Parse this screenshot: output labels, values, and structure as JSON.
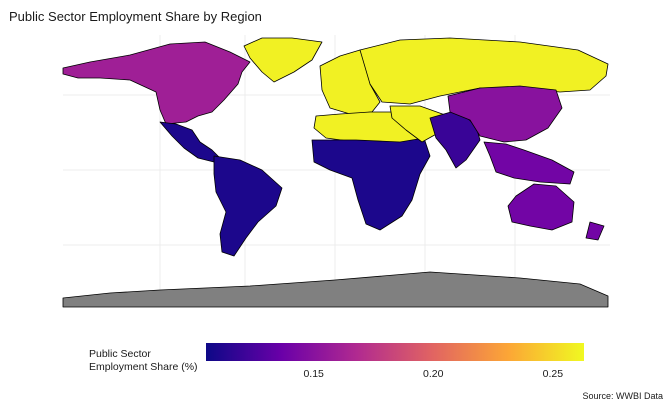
{
  "title": "Public Sector Employment Share by Region",
  "legend": {
    "title_line1": "Public Sector",
    "title_line2": "Employment Share (%)",
    "ticks": [
      "0.15",
      "0.20",
      "0.25"
    ],
    "scale_min": 0.105,
    "scale_max": 0.263,
    "palette": "plasma",
    "colors": [
      "#0d0887",
      "#6a00a8",
      "#b12a90",
      "#e16462",
      "#fca636",
      "#f0f921"
    ]
  },
  "caption": "Source: WWBI Data",
  "map": {
    "projection": "equirectangular",
    "no_data_color": "#808080",
    "gridlines": true,
    "regions": [
      {
        "name": "North America",
        "value": 0.16
      },
      {
        "name": "Central America",
        "value": 0.11
      },
      {
        "name": "South America",
        "value": 0.11
      },
      {
        "name": "Greenland",
        "value": 0.26
      },
      {
        "name": "Europe",
        "value": 0.26
      },
      {
        "name": "Russia",
        "value": 0.26
      },
      {
        "name": "North Africa",
        "value": 0.26
      },
      {
        "name": "Sub-Saharan Africa",
        "value": 0.11
      },
      {
        "name": "Middle East",
        "value": 0.26
      },
      {
        "name": "South Asia",
        "value": 0.12
      },
      {
        "name": "East Asia",
        "value": 0.15
      },
      {
        "name": "Southeast Asia",
        "value": 0.14
      },
      {
        "name": "Oceania",
        "value": 0.14
      },
      {
        "name": "Antarctica",
        "value": null
      }
    ]
  }
}
